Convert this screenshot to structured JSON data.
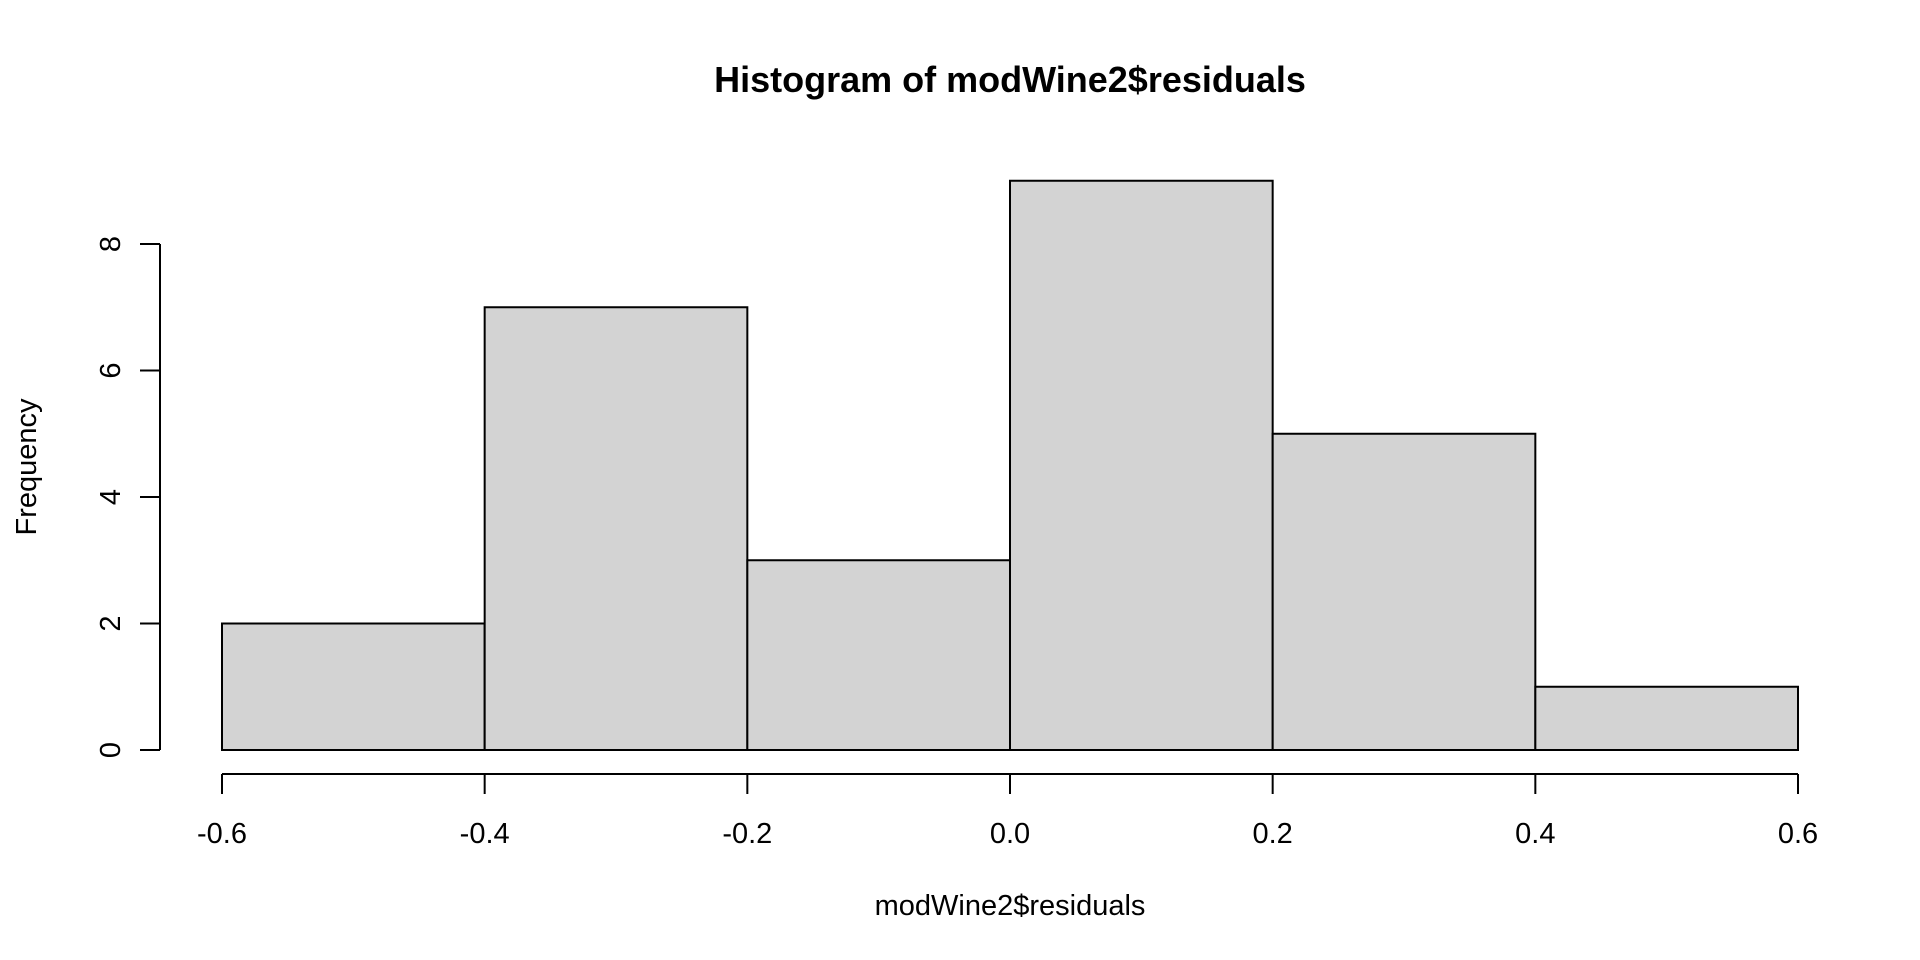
{
  "chart_data": {
    "type": "bar",
    "subtype": "histogram",
    "title": "Histogram of modWine2$residuals",
    "xlabel": "modWine2$residuals",
    "ylabel": "Frequency",
    "bins": [
      {
        "x0": -0.6,
        "x1": -0.4,
        "count": 2
      },
      {
        "x0": -0.4,
        "x1": -0.2,
        "count": 7
      },
      {
        "x0": -0.2,
        "x1": 0.0,
        "count": 3
      },
      {
        "x0": 0.0,
        "x1": 0.2,
        "count": 9
      },
      {
        "x0": 0.2,
        "x1": 0.4,
        "count": 5
      },
      {
        "x0": 0.4,
        "x1": 0.6,
        "count": 1
      }
    ],
    "xlim": [
      -0.6,
      0.6
    ],
    "ylim": [
      0,
      9
    ],
    "x_ticks": [
      -0.6,
      -0.4,
      -0.2,
      0.0,
      0.2,
      0.4,
      0.6
    ],
    "x_tick_labels": [
      "-0.6",
      "-0.4",
      "-0.2",
      "0.0",
      "0.2",
      "0.4",
      "0.6"
    ],
    "y_ticks": [
      0,
      2,
      4,
      6,
      8
    ],
    "y_tick_labels": [
      "0",
      "2",
      "4",
      "6",
      "8"
    ],
    "grid": false,
    "legend": "none",
    "bar_fill": "#d3d3d3",
    "bar_stroke": "#000000"
  }
}
